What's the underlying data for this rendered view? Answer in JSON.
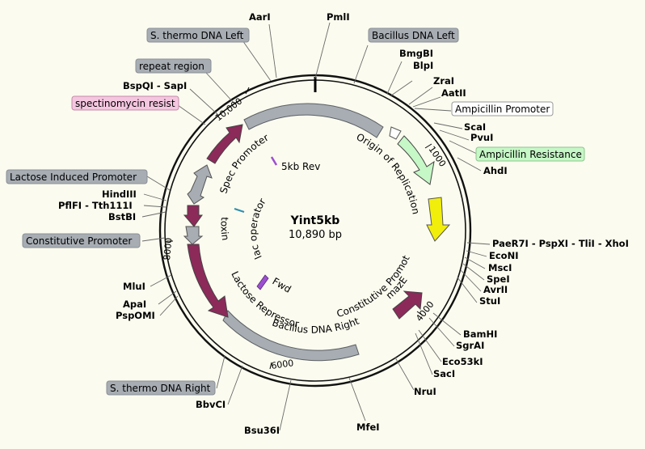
{
  "plasmid": {
    "name": "Yint5kb",
    "length_label": "10,890 bp",
    "total_bp": 10890
  },
  "ticks": [
    {
      "label": "10,000",
      "bp": 10000
    },
    {
      "label": "1000",
      "bp": 1000
    },
    {
      "label": "4000",
      "bp": 4000
    },
    {
      "label": "6000",
      "bp": 6000
    },
    {
      "label": "8000",
      "bp": 8000
    }
  ],
  "sites_right": [
    {
      "label": "PmlI",
      "deg": 0
    },
    {
      "label": "BmgBI",
      "deg": 16
    },
    {
      "label": "BlpI",
      "deg": 18
    },
    {
      "label": "ZraI",
      "deg": 28
    },
    {
      "label": "AatII",
      "deg": 29
    },
    {
      "label": "ScaI",
      "deg": 50
    },
    {
      "label": "PvuI",
      "deg": 54
    },
    {
      "label": "AhdI",
      "deg": 64
    },
    {
      "label": "PaeR7I - PspXI - TliI - XhoI",
      "deg": 104
    },
    {
      "label": "EcoNI",
      "deg": 107
    },
    {
      "label": "MscI",
      "deg": 110
    },
    {
      "label": "SpeI",
      "deg": 113
    },
    {
      "label": "AvrII",
      "deg": 116
    },
    {
      "label": "StuI",
      "deg": 119
    },
    {
      "label": "BamHI",
      "deg": 133
    },
    {
      "label": "SgrAI",
      "deg": 136
    },
    {
      "label": "Eco53kI",
      "deg": 143
    },
    {
      "label": "SacI",
      "deg": 145
    },
    {
      "label": "NruI",
      "deg": 153
    },
    {
      "label": "MfeI",
      "deg": 164
    }
  ],
  "sites_left": [
    {
      "label": "AarI",
      "deg": 354
    },
    {
      "label": "BspQI - SapI",
      "deg": 320
    },
    {
      "label": "HindIII",
      "deg": 279
    },
    {
      "label": "PflFI - Tth111I",
      "deg": 277
    },
    {
      "label": "BstBI",
      "deg": 275
    },
    {
      "label": "MluI",
      "deg": 246
    },
    {
      "label": "ApaI",
      "deg": 241
    },
    {
      "label": "PspOMI",
      "deg": 240
    },
    {
      "label": "BbvCI",
      "deg": 203
    },
    {
      "label": "Bsu36I",
      "deg": 187
    }
  ],
  "boxed_labels": [
    {
      "label": "S. thermo DNA Left",
      "style": "gray",
      "deg": 343
    },
    {
      "label": "Bacillus DNA Left",
      "style": "gray",
      "deg": 15
    },
    {
      "label": "repeat region",
      "style": "gray",
      "deg": 318
    },
    {
      "label": "spectinomycin resist",
      "style": "pink",
      "deg": 310
    },
    {
      "label": "Ampicillin Promoter",
      "style": "white",
      "deg": 38
    },
    {
      "label": "Ampicillin Resistance",
      "style": "green",
      "deg": 58
    },
    {
      "label": "Lactose Induced Promoter",
      "style": "gray",
      "deg": 291
    },
    {
      "label": "Constitutive Promoter",
      "style": "gray",
      "deg": 264
    },
    {
      "label": "S. thermo DNA Right",
      "style": "gray",
      "deg": 198
    }
  ],
  "features": [
    {
      "label": "Spec Promoter",
      "style": "gray"
    },
    {
      "label": "toxin",
      "style": "gray"
    },
    {
      "label": "Lactose Repressor",
      "style": "maroon"
    },
    {
      "label": "Bacillus DNA Right",
      "style": "gray"
    },
    {
      "label": "Constitutive Promoter",
      "style": "gray"
    },
    {
      "label": "mazE",
      "style": "maroon"
    },
    {
      "label": "Origin of Replication",
      "style": "yellow"
    },
    {
      "label": "lac operator",
      "style": "teal"
    },
    {
      "label": "5kb Rev",
      "style": "purple"
    },
    {
      "label": "Fwd",
      "style": "purple"
    }
  ],
  "colors": {
    "gray": "#a7adb3",
    "maroon": "#8c2a5a",
    "yellow": "#f2ee0c",
    "green": "#c6f7c6",
    "pink": "#f5c6e0",
    "white": "#ffffff",
    "teal": "#2f8fae",
    "purple": "#9c4fcf"
  }
}
